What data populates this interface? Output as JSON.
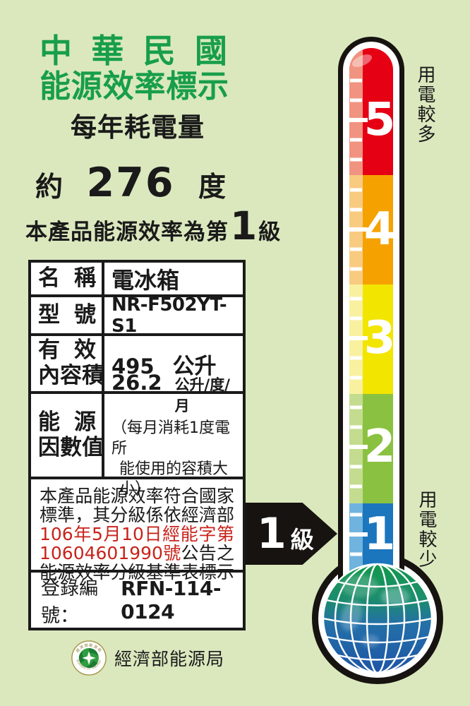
{
  "colors": {
    "background": "#DBE8BE",
    "title_green": "#189E4B",
    "text_black": "#1A1A1A",
    "statement_red": "#C8231B",
    "arrow_black": "#171310"
  },
  "header": {
    "title_line1": "中華民國",
    "title_line2": "能源效率標示",
    "subtitle": "每年耗電量"
  },
  "consumption": {
    "prefix": "約",
    "value": "276",
    "unit": "度"
  },
  "grade_sentence": {
    "pre": "本產品能源效率為第",
    "grade": "1",
    "post": "級"
  },
  "table": {
    "rows": [
      {
        "label": "名稱",
        "value": "電冰箱"
      },
      {
        "label": "型號",
        "value": "NR-F502YT-S1"
      },
      {
        "label_line1": "有效",
        "label_line2": "內容積",
        "value": "495",
        "unit": "公升"
      },
      {
        "label_line1": "能源",
        "label_line2": "因數值",
        "value": "26.2",
        "unit": "公升/度/月",
        "note_line1": "（每月消耗1度電所",
        "note_line2": "能使用的容積大小）"
      }
    ],
    "statement_lines": [
      {
        "segments": [
          {
            "text": "本產品能源效率符合國家",
            "red": false
          }
        ]
      },
      {
        "segments": [
          {
            "text": "標準，其分級係依經濟部",
            "red": false
          }
        ]
      },
      {
        "segments": [
          {
            "text": "106年5月10日經能字第",
            "red": true
          }
        ]
      },
      {
        "segments": [
          {
            "text": "10604601990號",
            "red": true
          },
          {
            "text": "公告之",
            "red": false
          }
        ]
      },
      {
        "segments": [
          {
            "text": "能源效率分級基準表標示",
            "red": false
          }
        ]
      }
    ],
    "registration": {
      "label": "登錄編號：",
      "value": "RFN-114-0124"
    }
  },
  "grade_arrow": {
    "number": "1",
    "suffix": "級"
  },
  "thermometer": {
    "top_label": "用電較多",
    "bottom_label": "用電較少",
    "levels": [
      {
        "grade": "5",
        "color": "#E60014",
        "stripe": "#F09380"
      },
      {
        "grade": "4",
        "color": "#F5A200",
        "stripe": "#F9CB80"
      },
      {
        "grade": "3",
        "color": "#F2E500",
        "stripe": "#F9F1A0"
      },
      {
        "grade": "2",
        "color": "#8BC140",
        "stripe": "#C3DC8F"
      },
      {
        "grade": "1",
        "color": "#1B76BE",
        "stripe": "#6FB3DE"
      }
    ]
  },
  "footer": {
    "agency": "經濟部能源局",
    "seal_text_top": "經濟部能源局",
    "seal_text_bottom": "BUREAU OF ENERGY"
  }
}
